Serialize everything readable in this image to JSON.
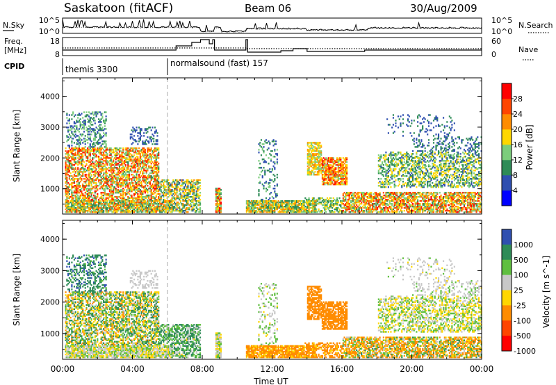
{
  "header": {
    "station": "Saskatoon (fitACF)",
    "beam": "Beam 06",
    "date": "30/Aug/2009"
  },
  "noise_panel": {
    "left_label": "N.Sky",
    "right_label": "N.Search",
    "left_ticks": [
      "10^5",
      "10^0"
    ],
    "right_ticks": [
      "10^5",
      "10^0"
    ]
  },
  "freq_panel": {
    "left_label_line1": "Freq.",
    "left_label_line2": "[MHz]",
    "right_label": "Nave",
    "left_ticks": [
      "18",
      "8"
    ],
    "right_ticks": [
      "60",
      "0"
    ]
  },
  "cpid_panel": {
    "label": "CPID",
    "programs": [
      {
        "name": "themis 3300",
        "start_hour": 0
      },
      {
        "name": "normalsound (fast) 157",
        "start_hour": 6.0
      }
    ]
  },
  "colors": {
    "power": [
      "#0000ff",
      "#2f4fb0",
      "#2e8b57",
      "#7ccd7c",
      "#ffd700",
      "#ff8c00",
      "#ff4500",
      "#ff0000"
    ],
    "velocity": [
      "#2f4fb0",
      "#2e8b57",
      "#5fbf3f",
      "#c8c8c8",
      "#ffd700",
      "#ff8c00",
      "#ff4500",
      "#ff0000"
    ]
  },
  "chart_data": [
    {
      "type": "heatmap",
      "title": "",
      "xlabel": "Time UT",
      "ylabel": "Slant Range [km]",
      "colorbar_label": "Power [dB]",
      "colorbar_ticks": [
        "28",
        "24",
        "20",
        "16",
        "12",
        "8",
        "4"
      ],
      "x_ticks": [
        "00:00",
        "04:00",
        "08:00",
        "12:00",
        "16:00",
        "20:00",
        "00:00"
      ],
      "y_ticks": [
        "1000",
        "2000",
        "3000",
        "4000"
      ],
      "xlim_hours": [
        0,
        24
      ],
      "ylim_km": [
        180,
        4600
      ],
      "colorbar_range": [
        0,
        32
      ],
      "data_gaps_hours": [
        [
          7.9,
          8.7
        ],
        [
          9.1,
          10.5
        ]
      ]
    },
    {
      "type": "heatmap",
      "title": "",
      "xlabel": "Time UT",
      "ylabel": "Slant Range [km]",
      "colorbar_label": "Velocity [m s^-1]",
      "colorbar_ticks": [
        "1000",
        "500",
        "100",
        "25",
        "-25",
        "-100",
        "-500",
        "-1000"
      ],
      "x_ticks": [
        "00:00",
        "04:00",
        "08:00",
        "12:00",
        "16:00",
        "20:00",
        "00:00"
      ],
      "y_ticks": [
        "1000",
        "2000",
        "3000",
        "4000"
      ],
      "xlim_hours": [
        0,
        24
      ],
      "ylim_km": [
        180,
        4600
      ],
      "colorbar_range": [
        -1000,
        1000
      ],
      "data_gaps_hours": [
        [
          7.9,
          8.7
        ],
        [
          9.1,
          10.5
        ]
      ]
    }
  ]
}
